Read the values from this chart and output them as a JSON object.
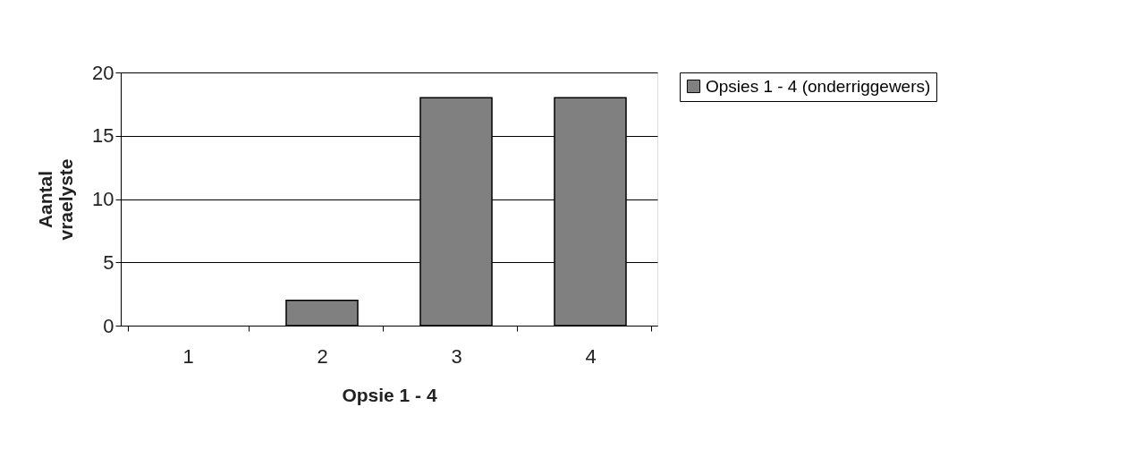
{
  "chart_data": {
    "type": "bar",
    "xlabel": "Opsie 1 - 4",
    "ylabel": "Aantal vraelyste",
    "categories": [
      "1",
      "2",
      "3",
      "4"
    ],
    "series": [
      {
        "name": "Opsies 1 - 4 (onderriggewers)",
        "color": "#808080",
        "values": [
          0,
          2,
          18,
          18
        ]
      }
    ],
    "ylim": [
      0,
      20
    ],
    "yticks": [
      0,
      5,
      10,
      15,
      20
    ],
    "grid": "y",
    "legend": "right"
  }
}
